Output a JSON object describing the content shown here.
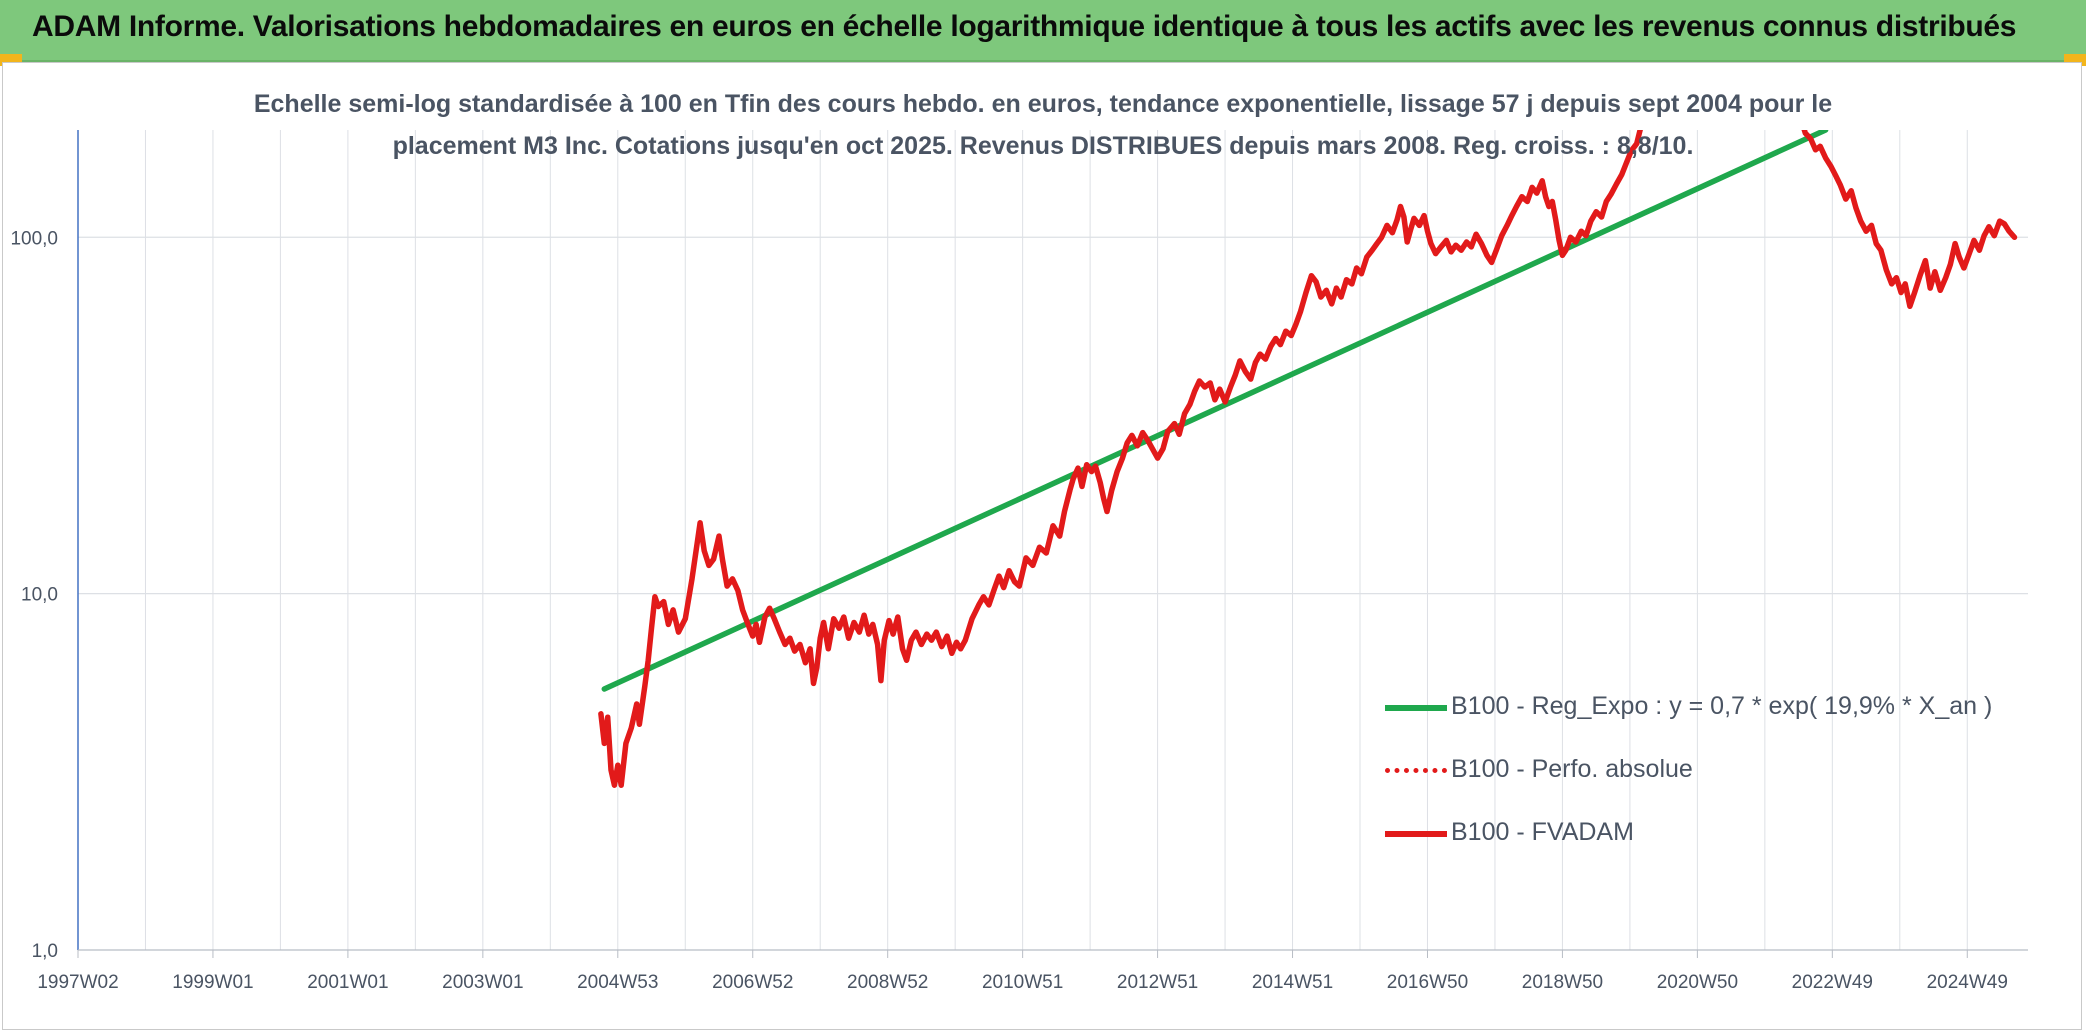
{
  "header": {
    "title": "ADAM Informe. Valorisations hebdomadaires en euros en échelle logarithmique identique à tous les actifs avec les revenus connus distribués"
  },
  "chart_data": {
    "type": "line",
    "title_line1": "Echelle semi-log standardisée à 100 en Tfin des cours hebdo. en euros, tendance exponentielle, lissage 57 j depuis sept 2004 pour le",
    "title_line2": "placement M3 Inc. Cotations jusqu'en oct 2025. Revenus DISTRIBUES depuis mars 2008. Reg. croiss. : 8,8/10.",
    "y_scale": "log",
    "ylim": [
      1,
      200
    ],
    "y_ticks": [
      {
        "value": 1,
        "label": "1,0"
      },
      {
        "value": 10,
        "label": "10,0"
      },
      {
        "value": 100,
        "label": "100,0"
      }
    ],
    "xlim": [
      1997.0,
      2025.9
    ],
    "x_ticks": [
      {
        "value": 1997.0,
        "label": "1997W02"
      },
      {
        "value": 1999.0,
        "label": "1999W01"
      },
      {
        "value": 2001.0,
        "label": "2001W01"
      },
      {
        "value": 2003.0,
        "label": "2003W01"
      },
      {
        "value": 2005.0,
        "label": "2004W53"
      },
      {
        "value": 2007.0,
        "label": "2006W52"
      },
      {
        "value": 2009.0,
        "label": "2008W52"
      },
      {
        "value": 2011.0,
        "label": "2010W51"
      },
      {
        "value": 2013.0,
        "label": "2012W51"
      },
      {
        "value": 2015.0,
        "label": "2014W51"
      },
      {
        "value": 2017.0,
        "label": "2016W50"
      },
      {
        "value": 2019.0,
        "label": "2018W50"
      },
      {
        "value": 2021.0,
        "label": "2020W50"
      },
      {
        "value": 2023.0,
        "label": "2022W49"
      },
      {
        "value": 2025.0,
        "label": "2024W49"
      }
    ],
    "grid": true,
    "legend_position": "bottom-right",
    "series": [
      {
        "name": "B100 - Reg_Expo : y = 0,7 * exp( 19,9% * X_an )",
        "color": "#1fa84d",
        "style": "solid",
        "points": [
          [
            2004.8,
            5.4
          ],
          [
            2022.9,
            200
          ]
        ]
      },
      {
        "name": "B100 - Perfo. absolue",
        "color": "#e21a1a",
        "style": "dotted",
        "points": []
      },
      {
        "name": "B100 - FVADAM",
        "color": "#e21a1a",
        "style": "solid",
        "points": [
          [
            2004.75,
            4.6
          ],
          [
            2004.8,
            3.8
          ],
          [
            2004.85,
            4.5
          ],
          [
            2004.9,
            3.2
          ],
          [
            2004.95,
            2.9
          ],
          [
            2005.0,
            3.3
          ],
          [
            2005.05,
            2.9
          ],
          [
            2005.12,
            3.8
          ],
          [
            2005.2,
            4.2
          ],
          [
            2005.28,
            4.9
          ],
          [
            2005.32,
            4.3
          ],
          [
            2005.4,
            5.5
          ],
          [
            2005.45,
            6.5
          ],
          [
            2005.5,
            8.0
          ],
          [
            2005.55,
            9.8
          ],
          [
            2005.6,
            9.2
          ],
          [
            2005.68,
            9.5
          ],
          [
            2005.75,
            8.2
          ],
          [
            2005.82,
            9.0
          ],
          [
            2005.9,
            7.8
          ],
          [
            2006.0,
            8.5
          ],
          [
            2006.1,
            11.0
          ],
          [
            2006.18,
            14.0
          ],
          [
            2006.22,
            15.8
          ],
          [
            2006.28,
            13.2
          ],
          [
            2006.35,
            12.0
          ],
          [
            2006.42,
            12.5
          ],
          [
            2006.5,
            14.5
          ],
          [
            2006.55,
            12.5
          ],
          [
            2006.62,
            10.5
          ],
          [
            2006.7,
            11.0
          ],
          [
            2006.78,
            10.2
          ],
          [
            2006.85,
            9.0
          ],
          [
            2006.92,
            8.3
          ],
          [
            2007.0,
            7.6
          ],
          [
            2007.05,
            8.2
          ],
          [
            2007.1,
            7.3
          ],
          [
            2007.18,
            8.6
          ],
          [
            2007.25,
            9.1
          ],
          [
            2007.32,
            8.5
          ],
          [
            2007.4,
            7.8
          ],
          [
            2007.48,
            7.2
          ],
          [
            2007.55,
            7.5
          ],
          [
            2007.62,
            6.9
          ],
          [
            2007.7,
            7.2
          ],
          [
            2007.78,
            6.4
          ],
          [
            2007.85,
            7.0
          ],
          [
            2007.9,
            5.6
          ],
          [
            2007.95,
            6.2
          ],
          [
            2008.0,
            7.5
          ],
          [
            2008.05,
            8.3
          ],
          [
            2008.12,
            7.0
          ],
          [
            2008.2,
            8.5
          ],
          [
            2008.28,
            8.0
          ],
          [
            2008.35,
            8.6
          ],
          [
            2008.42,
            7.5
          ],
          [
            2008.5,
            8.3
          ],
          [
            2008.58,
            7.8
          ],
          [
            2008.65,
            8.7
          ],
          [
            2008.72,
            7.7
          ],
          [
            2008.78,
            8.2
          ],
          [
            2008.85,
            7.2
          ],
          [
            2008.9,
            5.7
          ],
          [
            2008.95,
            7.4
          ],
          [
            2009.02,
            8.4
          ],
          [
            2009.08,
            7.7
          ],
          [
            2009.15,
            8.6
          ],
          [
            2009.22,
            7.0
          ],
          [
            2009.28,
            6.5
          ],
          [
            2009.35,
            7.4
          ],
          [
            2009.42,
            7.8
          ],
          [
            2009.5,
            7.2
          ],
          [
            2009.58,
            7.7
          ],
          [
            2009.65,
            7.4
          ],
          [
            2009.72,
            7.8
          ],
          [
            2009.8,
            7.1
          ],
          [
            2009.88,
            7.6
          ],
          [
            2009.95,
            6.8
          ],
          [
            2010.02,
            7.3
          ],
          [
            2010.08,
            7.0
          ],
          [
            2010.15,
            7.4
          ],
          [
            2010.25,
            8.5
          ],
          [
            2010.35,
            9.3
          ],
          [
            2010.42,
            9.8
          ],
          [
            2010.5,
            9.3
          ],
          [
            2010.58,
            10.3
          ],
          [
            2010.65,
            11.2
          ],
          [
            2010.72,
            10.4
          ],
          [
            2010.8,
            11.6
          ],
          [
            2010.88,
            10.8
          ],
          [
            2010.95,
            10.5
          ],
          [
            2011.05,
            12.6
          ],
          [
            2011.15,
            12.0
          ],
          [
            2011.25,
            13.5
          ],
          [
            2011.35,
            13.0
          ],
          [
            2011.45,
            15.5
          ],
          [
            2011.55,
            14.5
          ],
          [
            2011.62,
            17.0
          ],
          [
            2011.7,
            19.5
          ],
          [
            2011.75,
            21.0
          ],
          [
            2011.82,
            22.5
          ],
          [
            2011.88,
            20.0
          ],
          [
            2011.95,
            23.0
          ],
          [
            2012.02,
            22.0
          ],
          [
            2012.08,
            22.8
          ],
          [
            2012.15,
            20.5
          ],
          [
            2012.2,
            18.5
          ],
          [
            2012.25,
            17.0
          ],
          [
            2012.32,
            19.5
          ],
          [
            2012.4,
            22.0
          ],
          [
            2012.48,
            24.0
          ],
          [
            2012.55,
            26.5
          ],
          [
            2012.62,
            27.8
          ],
          [
            2012.7,
            26.0
          ],
          [
            2012.78,
            28.3
          ],
          [
            2012.85,
            27.0
          ],
          [
            2012.9,
            26.0
          ],
          [
            2013.0,
            24.0
          ],
          [
            2013.08,
            25.5
          ],
          [
            2013.15,
            28.5
          ],
          [
            2013.25,
            30.0
          ],
          [
            2013.32,
            28.0
          ],
          [
            2013.4,
            32.0
          ],
          [
            2013.48,
            34.0
          ],
          [
            2013.55,
            37.0
          ],
          [
            2013.62,
            39.5
          ],
          [
            2013.7,
            38.0
          ],
          [
            2013.78,
            39.0
          ],
          [
            2013.85,
            35.0
          ],
          [
            2013.92,
            37.5
          ],
          [
            2014.0,
            34.5
          ],
          [
            2014.08,
            38.0
          ],
          [
            2014.15,
            41.0
          ],
          [
            2014.22,
            45.0
          ],
          [
            2014.3,
            42.0
          ],
          [
            2014.38,
            40.0
          ],
          [
            2014.45,
            44.5
          ],
          [
            2014.52,
            47.0
          ],
          [
            2014.6,
            45.5
          ],
          [
            2014.68,
            49.5
          ],
          [
            2014.75,
            52.0
          ],
          [
            2014.82,
            50.0
          ],
          [
            2014.9,
            54.5
          ],
          [
            2014.98,
            53.0
          ],
          [
            2015.05,
            57.0
          ],
          [
            2015.12,
            62.0
          ],
          [
            2015.2,
            70.0
          ],
          [
            2015.28,
            78.0
          ],
          [
            2015.35,
            75.0
          ],
          [
            2015.42,
            68.0
          ],
          [
            2015.5,
            71.0
          ],
          [
            2015.58,
            65.0
          ],
          [
            2015.65,
            72.0
          ],
          [
            2015.72,
            68.0
          ],
          [
            2015.8,
            76.0
          ],
          [
            2015.88,
            74.0
          ],
          [
            2015.95,
            82.0
          ],
          [
            2016.02,
            79.0
          ],
          [
            2016.1,
            88.0
          ],
          [
            2016.18,
            92.0
          ],
          [
            2016.25,
            96.0
          ],
          [
            2016.32,
            100.0
          ],
          [
            2016.4,
            108.0
          ],
          [
            2016.48,
            103.0
          ],
          [
            2016.55,
            112.0
          ],
          [
            2016.6,
            122.0
          ],
          [
            2016.65,
            114.0
          ],
          [
            2016.7,
            97.0
          ],
          [
            2016.75,
            105.0
          ],
          [
            2016.8,
            113.0
          ],
          [
            2016.88,
            108.0
          ],
          [
            2016.95,
            115.0
          ],
          [
            2017.0,
            104.0
          ],
          [
            2017.05,
            96.0
          ],
          [
            2017.12,
            90.0
          ],
          [
            2017.2,
            94.0
          ],
          [
            2017.28,
            98.0
          ],
          [
            2017.35,
            91.0
          ],
          [
            2017.42,
            95.0
          ],
          [
            2017.5,
            92.0
          ],
          [
            2017.58,
            97.0
          ],
          [
            2017.65,
            94.0
          ],
          [
            2017.72,
            102.0
          ],
          [
            2017.8,
            96.0
          ],
          [
            2017.88,
            89.0
          ],
          [
            2017.95,
            85.0
          ],
          [
            2018.02,
            92.0
          ],
          [
            2018.1,
            101.0
          ],
          [
            2018.18,
            108.0
          ],
          [
            2018.25,
            115.0
          ],
          [
            2018.32,
            122.0
          ],
          [
            2018.4,
            130.0
          ],
          [
            2018.48,
            126.0
          ],
          [
            2018.55,
            138.0
          ],
          [
            2018.62,
            133.0
          ],
          [
            2018.7,
            144.0
          ],
          [
            2018.75,
            130.0
          ],
          [
            2018.8,
            122.0
          ],
          [
            2018.85,
            126.0
          ],
          [
            2018.9,
            112.0
          ],
          [
            2018.95,
            98.0
          ],
          [
            2019.0,
            89.0
          ],
          [
            2019.05,
            92.0
          ],
          [
            2019.12,
            100.0
          ],
          [
            2019.2,
            97.0
          ],
          [
            2019.28,
            104.0
          ],
          [
            2019.35,
            101.0
          ],
          [
            2019.42,
            111.0
          ],
          [
            2019.5,
            118.0
          ],
          [
            2019.58,
            114.0
          ],
          [
            2019.65,
            126.0
          ],
          [
            2019.72,
            132.0
          ],
          [
            2019.8,
            141.0
          ],
          [
            2019.88,
            150.0
          ],
          [
            2019.95,
            162.0
          ],
          [
            2020.02,
            175.0
          ],
          [
            2020.1,
            183.0
          ],
          [
            2020.18,
            210.0
          ],
          [
            2022.55,
            210.0
          ],
          [
            2022.6,
            196.0
          ],
          [
            2022.68,
            189.0
          ],
          [
            2022.75,
            176.0
          ],
          [
            2022.82,
            180.0
          ],
          [
            2022.9,
            167.0
          ],
          [
            2022.98,
            158.0
          ],
          [
            2023.05,
            149.0
          ],
          [
            2023.12,
            140.0
          ],
          [
            2023.2,
            128.0
          ],
          [
            2023.28,
            135.0
          ],
          [
            2023.35,
            121.0
          ],
          [
            2023.42,
            111.0
          ],
          [
            2023.5,
            104.0
          ],
          [
            2023.58,
            108.0
          ],
          [
            2023.65,
            96.0
          ],
          [
            2023.72,
            92.0
          ],
          [
            2023.8,
            81.0
          ],
          [
            2023.88,
            74.0
          ],
          [
            2023.95,
            77.0
          ],
          [
            2024.02,
            70.0
          ],
          [
            2024.08,
            74.0
          ],
          [
            2024.15,
            64.0
          ],
          [
            2024.22,
            70.0
          ],
          [
            2024.3,
            78.0
          ],
          [
            2024.38,
            86.0
          ],
          [
            2024.45,
            72.0
          ],
          [
            2024.52,
            80.0
          ],
          [
            2024.6,
            71.0
          ],
          [
            2024.68,
            77.0
          ],
          [
            2024.75,
            84.0
          ],
          [
            2024.82,
            96.0
          ],
          [
            2024.88,
            88.0
          ],
          [
            2024.95,
            82.0
          ],
          [
            2025.02,
            89.0
          ],
          [
            2025.1,
            98.0
          ],
          [
            2025.18,
            92.0
          ],
          [
            2025.25,
            101.0
          ],
          [
            2025.32,
            107.0
          ],
          [
            2025.4,
            101.0
          ],
          [
            2025.48,
            111.0
          ],
          [
            2025.55,
            109.0
          ],
          [
            2025.62,
            104.0
          ],
          [
            2025.7,
            100.0
          ]
        ]
      }
    ]
  }
}
